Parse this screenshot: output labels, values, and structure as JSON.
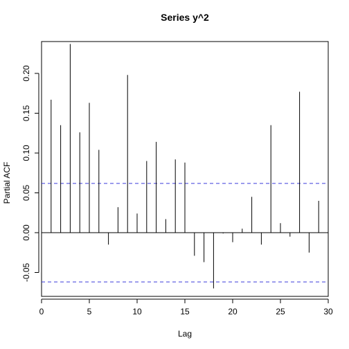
{
  "chart_data": {
    "type": "bar",
    "title": "Series  y^2",
    "xlabel": "Lag",
    "ylabel": "Partial ACF",
    "xlim": [
      0,
      30
    ],
    "ylim": [
      -0.08,
      0.24
    ],
    "x_ticks": [
      0,
      5,
      10,
      15,
      20,
      25,
      30
    ],
    "x_tick_labels": [
      "0",
      "5",
      "10",
      "15",
      "20",
      "25",
      "30"
    ],
    "y_ticks": [
      -0.05,
      0.0,
      0.05,
      0.1,
      0.15,
      0.2
    ],
    "y_tick_labels": [
      "-0.05",
      "0.00",
      "0.05",
      "0.10",
      "0.15",
      "0.20"
    ],
    "lags": [
      1,
      2,
      3,
      4,
      5,
      6,
      7,
      8,
      9,
      10,
      11,
      12,
      13,
      14,
      15,
      16,
      17,
      18,
      19,
      20,
      21,
      22,
      23,
      24,
      25,
      26,
      27,
      28,
      29,
      30
    ],
    "values": [
      0.167,
      0.135,
      0.237,
      0.126,
      0.163,
      0.104,
      -0.015,
      0.032,
      0.198,
      0.024,
      0.09,
      0.114,
      0.017,
      0.092,
      0.088,
      -0.029,
      -0.037,
      -0.07,
      -0.001,
      -0.012,
      0.005,
      0.045,
      -0.015,
      0.135,
      0.012,
      -0.005,
      0.177,
      -0.025,
      0.04,
      0.003
    ],
    "confidence_bound": 0.0618,
    "grid": false,
    "colors": {
      "bars": "#000000",
      "confidence_lines": "#3b3bdb",
      "zero_line": "#000000"
    }
  }
}
